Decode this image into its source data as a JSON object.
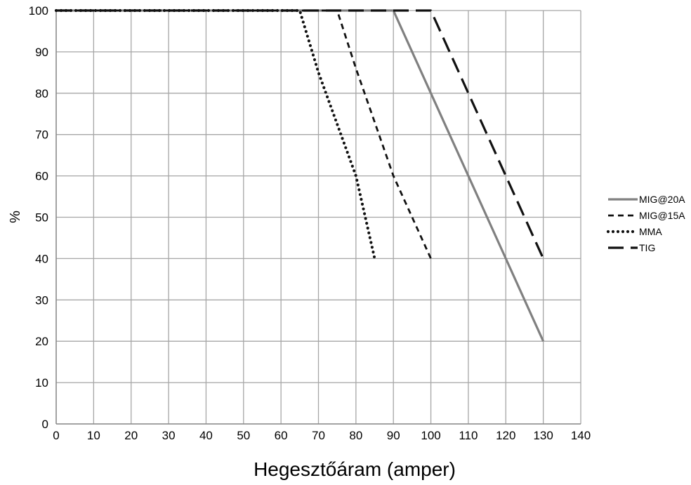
{
  "chart_data": {
    "type": "line",
    "xlabel": "Hegesztőáram (amper)",
    "ylabel": "%",
    "xlim": [
      0,
      140
    ],
    "ylim": [
      0,
      100
    ],
    "xticks": [
      0,
      10,
      20,
      30,
      40,
      50,
      60,
      70,
      80,
      90,
      100,
      110,
      120,
      130,
      140
    ],
    "yticks": [
      0,
      10,
      20,
      30,
      40,
      50,
      60,
      70,
      80,
      90,
      100
    ],
    "grid": true,
    "legend_position": "right",
    "series": [
      {
        "name": "MIG@20A",
        "style": "solid",
        "color": "#808080",
        "points": [
          [
            0,
            100
          ],
          [
            90,
            100
          ],
          [
            100,
            80
          ],
          [
            110,
            60
          ],
          [
            120,
            40
          ],
          [
            130,
            20
          ]
        ]
      },
      {
        "name": "MIG@15A",
        "style": "dashed",
        "color": "#111111",
        "points": [
          [
            0,
            100
          ],
          [
            75,
            100
          ],
          [
            80,
            86
          ],
          [
            90,
            60
          ],
          [
            100,
            40
          ]
        ]
      },
      {
        "name": "MMA",
        "style": "dotted",
        "color": "#111111",
        "points": [
          [
            0,
            100
          ],
          [
            65,
            100
          ],
          [
            70,
            85
          ],
          [
            80,
            60
          ],
          [
            85,
            40
          ]
        ]
      },
      {
        "name": "TIG",
        "style": "longdash",
        "color": "#111111",
        "points": [
          [
            0,
            100
          ],
          [
            100,
            100
          ],
          [
            110,
            80
          ],
          [
            120,
            60
          ],
          [
            130,
            40
          ]
        ]
      }
    ]
  }
}
